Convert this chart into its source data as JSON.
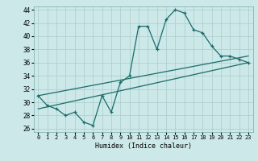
{
  "xlabel": "Humidex (Indice chaleur)",
  "ylabel": "",
  "xlim": [
    -0.5,
    23.5
  ],
  "ylim": [
    25.5,
    44.5
  ],
  "yticks": [
    26,
    28,
    30,
    32,
    34,
    36,
    38,
    40,
    42,
    44
  ],
  "xticks": [
    0,
    1,
    2,
    3,
    4,
    5,
    6,
    7,
    8,
    9,
    10,
    11,
    12,
    13,
    14,
    15,
    16,
    17,
    18,
    19,
    20,
    21,
    22,
    23
  ],
  "bg_color": "#cce8e8",
  "grid_color": "#aacccc",
  "line_color": "#1a6b6b",
  "line1_x": [
    0,
    1,
    2,
    3,
    4,
    5,
    6,
    7,
    8,
    9,
    10,
    11,
    12,
    13,
    14,
    15,
    16,
    17,
    18,
    19,
    20,
    21,
    22,
    23
  ],
  "line1_y": [
    31,
    29.5,
    29,
    28,
    28.5,
    27,
    26.5,
    31,
    28.5,
    33,
    34,
    41.5,
    41.5,
    38,
    42.5,
    44,
    43.5,
    41,
    40.5,
    38.5,
    37,
    37,
    36.5,
    36
  ],
  "line2_x": [
    0,
    23
  ],
  "line2_y": [
    29,
    36
  ],
  "line3_x": [
    0,
    23
  ],
  "line3_y": [
    31,
    37
  ],
  "font_name": "monospace"
}
